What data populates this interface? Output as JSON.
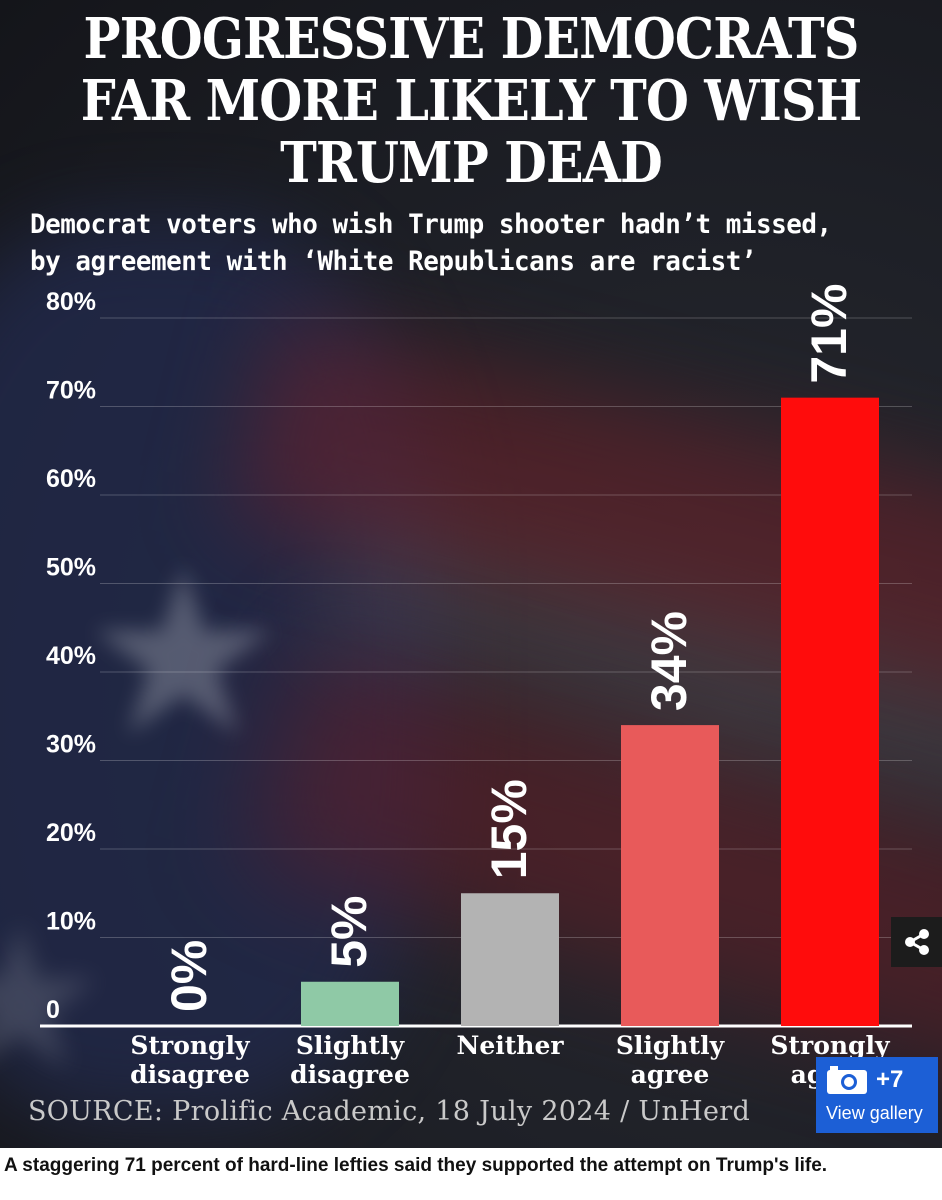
{
  "title": [
    "PROGRESSIVE DEMOCRATS",
    "FAR MORE LIKELY TO WISH",
    "TRUMP DEAD"
  ],
  "subtitle": [
    "Democrat voters who wish Trump shooter hadn’t missed,",
    "by agreement with ‘White Republicans are racist’"
  ],
  "source": "SOURCE: Prolific Academic, 18 July 2024 / UnHerd",
  "caption": "A staggering 71 percent of hard-line lefties said they supported the attempt on Trump's life.",
  "gallery": {
    "count": "+7",
    "label": "View gallery"
  },
  "icons": {
    "share": "share-icon",
    "camera": "camera-icon"
  },
  "colors": {
    "background": "#1b1c22",
    "gallery": "#1c5fd6"
  },
  "chart_data": {
    "type": "bar",
    "categories": [
      [
        "Strongly",
        "disagree"
      ],
      [
        "Slightly",
        "disagree"
      ],
      [
        "Neither"
      ],
      [
        "Slightly",
        "agree"
      ],
      [
        "Strongly",
        "agree"
      ]
    ],
    "values": [
      0,
      5,
      15,
      34,
      71
    ],
    "data_labels": [
      "0%",
      "5%",
      "15%",
      "34%",
      "71%"
    ],
    "bar_colors": [
      "#8fc9a6",
      "#8fc9a6",
      "#b3b3b3",
      "#e85a5a",
      "#ff0c0c"
    ],
    "yticks": [
      0,
      10,
      20,
      30,
      40,
      50,
      60,
      70,
      80
    ],
    "ytick_labels": [
      "0",
      "10%",
      "20%",
      "30%",
      "40%",
      "50%",
      "60%",
      "70%",
      "80%"
    ],
    "ylim": [
      0,
      80
    ],
    "grid": true,
    "legend": "none"
  }
}
